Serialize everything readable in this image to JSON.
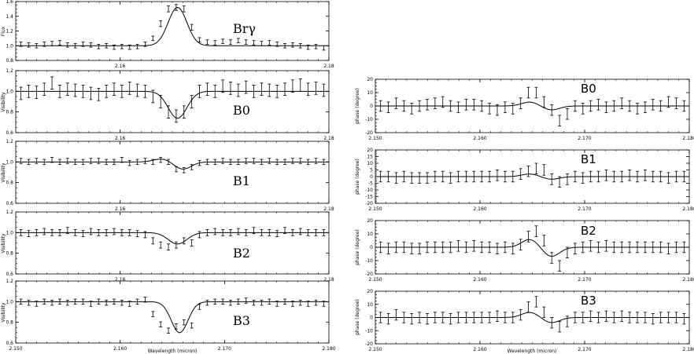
{
  "chart_data": [
    {
      "type": "line",
      "label": "Brγ",
      "ylabel": "Flux",
      "xlabel": "",
      "xlim": [
        2.15,
        2.18
      ],
      "ylim": [
        0.8,
        1.6
      ],
      "yticks": [
        "0.8",
        "1.0",
        "1.2",
        "1.4",
        "1.6"
      ],
      "xticks": [
        "2.16",
        "2.18"
      ],
      "xtick_values": [
        2.16,
        2.18
      ],
      "model": {
        "baseline": 1.0,
        "amplitude": 0.52,
        "center": 2.1655,
        "sigma": 0.0009,
        "lobe_amp": 0,
        "lobe_offset": 0
      },
      "points_y": [
        1.02,
        1.01,
        1.0,
        1.02,
        1.03,
        1.04,
        1.01,
        1.0,
        1.02,
        1.01,
        0.99,
        1.0,
        0.98,
        0.99,
        0.98,
        0.99,
        1.02,
        1.1,
        1.3,
        1.5,
        1.52,
        1.5,
        1.25,
        1.08,
        1.05,
        1.04,
        1.06,
        1.05,
        1.07,
        1.05,
        1.04,
        1.03,
        1.04,
        1.02,
        1.0,
        1.01,
        1.0,
        0.98,
        0.99,
        0.97
      ],
      "err": [
        0.03,
        0.03,
        0.03,
        0.03,
        0.03,
        0.03,
        0.03,
        0.03,
        0.03,
        0.03,
        0.03,
        0.03,
        0.03,
        0.03,
        0.03,
        0.03,
        0.03,
        0.03,
        0.04,
        0.04,
        0.04,
        0.04,
        0.04,
        0.03,
        0.03,
        0.03,
        0.03,
        0.03,
        0.03,
        0.03,
        0.03,
        0.03,
        0.03,
        0.03,
        0.03,
        0.03,
        0.03,
        0.03,
        0.03,
        0.03
      ]
    },
    {
      "type": "line",
      "label": "B0",
      "ylabel": "Visibility",
      "xlabel": "",
      "xlim": [
        2.15,
        2.18
      ],
      "ylim": [
        0.6,
        1.2
      ],
      "yticks": [
        "0.6",
        "0.8",
        "1.0",
        "1.2"
      ],
      "xticks": [
        "2.16",
        "2.18"
      ],
      "xtick_values": [
        2.16,
        2.18
      ],
      "model": {
        "baseline": 1.0,
        "amplitude": -0.26,
        "center": 2.1655,
        "sigma": 0.0009,
        "lobe_amp": 0,
        "lobe_offset": 0
      },
      "points_y": [
        0.98,
        1.0,
        0.99,
        1.02,
        1.08,
        1.0,
        1.02,
        1.01,
        1.0,
        0.98,
        0.97,
        1.0,
        1.02,
        1.0,
        1.03,
        1.01,
        1.0,
        0.95,
        0.9,
        0.8,
        0.76,
        0.8,
        0.9,
        1.0,
        1.02,
        1.0,
        1.05,
        1.03,
        1.01,
        1.04,
        1.0,
        1.02,
        1.01,
        1.0,
        1.02,
        1.05,
        1.06,
        1.02,
        1.03,
        1.01
      ],
      "err": [
        0.06,
        0.06,
        0.06,
        0.06,
        0.06,
        0.06,
        0.06,
        0.06,
        0.06,
        0.06,
        0.06,
        0.06,
        0.06,
        0.06,
        0.06,
        0.06,
        0.06,
        0.06,
        0.06,
        0.06,
        0.06,
        0.06,
        0.06,
        0.06,
        0.06,
        0.06,
        0.06,
        0.06,
        0.06,
        0.06,
        0.06,
        0.06,
        0.06,
        0.06,
        0.06,
        0.06,
        0.06,
        0.06,
        0.06,
        0.06
      ]
    },
    {
      "type": "line",
      "label": "B1",
      "ylabel": "Visibility",
      "xlabel": "",
      "xlim": [
        2.15,
        2.18
      ],
      "ylim": [
        0.6,
        1.2
      ],
      "yticks": [
        "0.6",
        "0.8",
        "1.0",
        "1.2"
      ],
      "xticks": [
        "2.16",
        "2.18"
      ],
      "xtick_values": [
        2.16,
        2.18
      ],
      "model": {
        "baseline": 1.0,
        "amplitude": -0.07,
        "center": 2.166,
        "sigma": 0.0008,
        "lobe_amp": 0.03,
        "lobe_offset": -0.002
      },
      "points_y": [
        1.01,
        1.0,
        1.01,
        1.0,
        1.02,
        1.0,
        1.01,
        1.0,
        1.0,
        1.01,
        1.01,
        1.0,
        1.0,
        1.02,
        0.99,
        1.0,
        1.01,
        1.0,
        1.02,
        1.0,
        0.93,
        0.92,
        0.95,
        0.99,
        1.0,
        1.0,
        1.01,
        1.0,
        1.0,
        1.01,
        1.01,
        1.0,
        1.01,
        1.0,
        1.0,
        1.01,
        1.01,
        1.0,
        1.01,
        1.0
      ],
      "err": [
        0.025,
        0.025,
        0.025,
        0.025,
        0.025,
        0.025,
        0.025,
        0.025,
        0.025,
        0.025,
        0.025,
        0.025,
        0.025,
        0.025,
        0.025,
        0.025,
        0.025,
        0.025,
        0.025,
        0.025,
        0.025,
        0.025,
        0.025,
        0.025,
        0.025,
        0.025,
        0.025,
        0.025,
        0.025,
        0.025,
        0.025,
        0.025,
        0.025,
        0.025,
        0.025,
        0.025,
        0.025,
        0.025,
        0.025,
        0.025
      ]
    },
    {
      "type": "line",
      "label": "B2",
      "ylabel": "Visibility",
      "xlabel": "",
      "xlim": [
        2.15,
        2.18
      ],
      "ylim": [
        0.6,
        1.2
      ],
      "yticks": [
        "0.6",
        "0.8",
        "1.0",
        "1.2"
      ],
      "xticks": [
        "2.16",
        "2.18"
      ],
      "xtick_values": [
        2.16,
        2.18
      ],
      "model": {
        "baseline": 1.0,
        "amplitude": -0.11,
        "center": 2.1655,
        "sigma": 0.0009,
        "lobe_amp": 0,
        "lobe_offset": 0
      },
      "points_y": [
        1.0,
        0.99,
        1.0,
        1.01,
        1.0,
        1.0,
        1.02,
        1.0,
        0.99,
        1.01,
        1.0,
        1.0,
        1.01,
        1.0,
        1.0,
        0.99,
        0.98,
        0.92,
        0.88,
        0.86,
        0.88,
        0.92,
        0.9,
        0.98,
        1.0,
        1.01,
        1.0,
        1.0,
        1.01,
        1.0,
        1.02,
        1.0,
        1.0,
        0.99,
        1.02,
        1.0,
        1.01,
        1.0,
        1.0,
        1.0
      ],
      "err": [
        0.03,
        0.03,
        0.03,
        0.03,
        0.03,
        0.03,
        0.03,
        0.03,
        0.03,
        0.03,
        0.03,
        0.03,
        0.03,
        0.03,
        0.03,
        0.03,
        0.03,
        0.03,
        0.03,
        0.03,
        0.03,
        0.03,
        0.03,
        0.03,
        0.03,
        0.03,
        0.03,
        0.03,
        0.03,
        0.03,
        0.03,
        0.03,
        0.03,
        0.03,
        0.03,
        0.03,
        0.03,
        0.03,
        0.03,
        0.03
      ]
    },
    {
      "type": "line",
      "label": "B3",
      "ylabel": "Visibility",
      "xlabel": "Wavelength (micron)",
      "xlim": [
        2.15,
        2.18
      ],
      "ylim": [
        0.6,
        1.2
      ],
      "yticks": [
        "0.6",
        "0.8",
        "1.0",
        "1.2"
      ],
      "xticks": [
        "2.150",
        "2.160",
        "2.170",
        "2.180"
      ],
      "xtick_values": [
        2.15,
        2.16,
        2.17,
        2.18
      ],
      "model": {
        "baseline": 1.0,
        "amplitude": -0.3,
        "center": 2.1657,
        "sigma": 0.0008,
        "lobe_amp": 0,
        "lobe_offset": 0
      },
      "points_y": [
        1.0,
        0.99,
        0.98,
        1.0,
        0.99,
        1.0,
        0.99,
        1.0,
        1.0,
        0.98,
        1.0,
        0.99,
        1.0,
        0.99,
        0.98,
        1.0,
        1.02,
        0.88,
        0.78,
        0.72,
        0.76,
        0.8,
        0.77,
        0.95,
        0.99,
        1.0,
        1.0,
        0.99,
        1.0,
        1.01,
        0.99,
        0.99,
        1.0,
        0.98,
        1.0,
        0.98,
        0.99,
        0.98,
        0.99,
        0.98
      ],
      "err": [
        0.025,
        0.025,
        0.025,
        0.025,
        0.025,
        0.025,
        0.025,
        0.025,
        0.025,
        0.025,
        0.025,
        0.025,
        0.025,
        0.025,
        0.025,
        0.025,
        0.025,
        0.025,
        0.025,
        0.025,
        0.025,
        0.025,
        0.025,
        0.025,
        0.025,
        0.025,
        0.025,
        0.025,
        0.025,
        0.025,
        0.025,
        0.025,
        0.025,
        0.025,
        0.025,
        0.025,
        0.025,
        0.025,
        0.025,
        0.025
      ]
    },
    {
      "type": "line",
      "label": "B0",
      "ylabel": "phase (degree)",
      "xlabel": "",
      "xlim": [
        2.15,
        2.18
      ],
      "ylim": [
        -20,
        20
      ],
      "yticks": [
        "-20",
        "-10",
        "0",
        "10",
        "20"
      ],
      "xticks": [
        "2.150",
        "2.160",
        "2.170",
        "2.180"
      ],
      "xtick_values": [
        2.15,
        2.16,
        2.17,
        2.18
      ],
      "model": {
        "baseline": 0,
        "amplitude": 3,
        "center": 2.1648,
        "sigma": 0.0008,
        "lobe_amp": -3,
        "lobe_offset": 0.002
      },
      "points_y": [
        0,
        -1,
        2,
        0,
        -2,
        0,
        1,
        2,
        3,
        0,
        -1,
        1,
        1,
        0,
        -2,
        -3,
        -1,
        -2,
        2,
        10,
        10,
        3,
        -3,
        -11,
        -6,
        0,
        -2,
        0,
        1,
        -1,
        0,
        2,
        0,
        -2,
        -1,
        1,
        0,
        3,
        2,
        0
      ],
      "err": [
        4,
        4,
        4,
        4,
        4,
        4,
        4,
        4,
        4,
        4,
        4,
        4,
        4,
        4,
        4,
        4,
        4,
        4,
        4,
        4,
        4,
        4,
        4,
        4,
        4,
        4,
        4,
        4,
        4,
        4,
        4,
        4,
        4,
        4,
        4,
        4,
        4,
        4,
        4,
        4
      ]
    },
    {
      "type": "line",
      "label": "B1",
      "ylabel": "phase (degree)",
      "xlabel": "",
      "xlim": [
        2.15,
        2.18
      ],
      "ylim": [
        -20,
        20
      ],
      "yticks": [
        "-20",
        "-15",
        "-10",
        "-5",
        "0",
        "5",
        "10",
        "15",
        "20"
      ],
      "xticks": [
        "2.150",
        "2.160",
        "2.170",
        "2.180"
      ],
      "xtick_values": [
        2.15,
        2.16,
        2.17,
        2.18
      ],
      "model": {
        "baseline": 0,
        "amplitude": 2,
        "center": 2.1648,
        "sigma": 0.0008,
        "lobe_amp": -2,
        "lobe_offset": 0.002
      },
      "points_y": [
        0,
        0,
        -1,
        0,
        -1,
        -1,
        -1,
        0,
        0,
        -1,
        0,
        0,
        0,
        0,
        0,
        1,
        0,
        0,
        2,
        4,
        6,
        5,
        -2,
        -4,
        -2,
        0,
        -1,
        0,
        0,
        1,
        0,
        0,
        1,
        0,
        1,
        0,
        0,
        -1,
        0,
        0
      ],
      "err": [
        4,
        4,
        4,
        4,
        4,
        4,
        4,
        4,
        4,
        4,
        4,
        4,
        4,
        4,
        4,
        4,
        4,
        4,
        4,
        4,
        4,
        4,
        4,
        4,
        4,
        4,
        4,
        4,
        4,
        4,
        4,
        4,
        4,
        4,
        4,
        4,
        4,
        4,
        4,
        4
      ]
    },
    {
      "type": "line",
      "label": "B2",
      "ylabel": "phase (degree)",
      "xlabel": "",
      "xlim": [
        2.15,
        2.18
      ],
      "ylim": [
        -20,
        20
      ],
      "yticks": [
        "-20",
        "-10",
        "0",
        "10",
        "20"
      ],
      "xticks": [
        "2.150",
        "2.160",
        "2.170",
        "2.180"
      ],
      "xtick_values": [
        2.15,
        2.16,
        2.17,
        2.18
      ],
      "model": {
        "baseline": 0,
        "amplitude": 6,
        "center": 2.1648,
        "sigma": 0.0008,
        "lobe_amp": -7,
        "lobe_offset": 0.002
      },
      "points_y": [
        0,
        -1,
        0,
        0,
        -1,
        -1,
        0,
        0,
        0,
        0,
        1,
        0,
        1,
        0,
        0,
        -1,
        0,
        -1,
        2,
        8,
        12,
        5,
        -8,
        -14,
        -4,
        -1,
        0,
        1,
        0,
        1,
        0,
        0,
        0,
        0,
        0,
        0,
        0,
        -1,
        0,
        0
      ],
      "err": [
        4,
        4,
        4,
        4,
        4,
        4,
        4,
        4,
        4,
        4,
        4,
        4,
        4,
        4,
        4,
        4,
        4,
        4,
        4,
        4,
        4,
        4,
        4,
        4,
        4,
        4,
        4,
        4,
        4,
        4,
        4,
        4,
        4,
        4,
        4,
        4,
        4,
        4,
        4,
        4
      ]
    },
    {
      "type": "line",
      "label": "B3",
      "ylabel": "phase (degree)",
      "xlabel": "Wavelength (micron)",
      "xlim": [
        2.15,
        2.18
      ],
      "ylim": [
        -20,
        20
      ],
      "yticks": [
        "-20",
        "-10",
        "0",
        "10",
        "20"
      ],
      "xticks": [
        "2.150",
        "2.160",
        "2.170",
        "2.180"
      ],
      "xtick_values": [
        2.15,
        2.16,
        2.17,
        2.18
      ],
      "model": {
        "baseline": 0,
        "amplitude": 4,
        "center": 2.1648,
        "sigma": 0.0008,
        "lobe_amp": -4,
        "lobe_offset": 0.002
      },
      "points_y": [
        0,
        -1,
        2,
        0,
        -1,
        0,
        -1,
        0,
        0,
        -1,
        0,
        0,
        0,
        0,
        0,
        1,
        0,
        0,
        2,
        8,
        12,
        4,
        -4,
        -7,
        -3,
        0,
        0,
        1,
        0,
        1,
        0,
        1,
        0,
        0,
        0,
        -1,
        0,
        0,
        0,
        -1
      ],
      "err": [
        4,
        4,
        4,
        4,
        4,
        4,
        4,
        4,
        4,
        4,
        4,
        4,
        4,
        4,
        4,
        4,
        4,
        4,
        4,
        4,
        4,
        4,
        4,
        4,
        4,
        4,
        4,
        4,
        4,
        4,
        4,
        4,
        4,
        4,
        4,
        4,
        4,
        4,
        4,
        4
      ]
    }
  ]
}
